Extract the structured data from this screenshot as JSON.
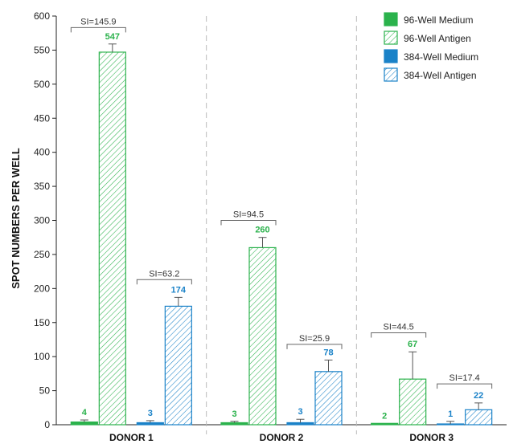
{
  "chart_data": {
    "type": "bar",
    "ylabel": "SPOT NUMBERS PER WELL",
    "ylim": [
      0,
      600
    ],
    "yticks": [
      0,
      50,
      100,
      150,
      200,
      250,
      300,
      350,
      400,
      450,
      500,
      550,
      600
    ],
    "categories": [
      "DONOR 1",
      "DONOR 2",
      "DONOR 3"
    ],
    "grid": false,
    "legend_position": "top-right",
    "series": [
      {
        "name": "96-Well Medium",
        "values": [
          4,
          3,
          2
        ],
        "errors": [
          3,
          2,
          0
        ],
        "color": "#2bb24c",
        "pattern": "solid"
      },
      {
        "name": "96-Well Antigen",
        "values": [
          547,
          260,
          67
        ],
        "errors": [
          12,
          15,
          40
        ],
        "color": "#2bb24c",
        "pattern": "hatched"
      },
      {
        "name": "384-Well Medium",
        "values": [
          3,
          3,
          1
        ],
        "errors": [
          3,
          5,
          4
        ],
        "color": "#1a82c8",
        "pattern": "solid"
      },
      {
        "name": "384-Well Antigen",
        "values": [
          174,
          78,
          22
        ],
        "errors": [
          13,
          17,
          10
        ],
        "color": "#1a82c8",
        "pattern": "hatched"
      }
    ],
    "annotations": [
      {
        "category": "DONOR 1",
        "group": "96-Well",
        "text": "SI=145.9",
        "level": 583
      },
      {
        "category": "DONOR 1",
        "group": "384-Well",
        "text": "SI=63.2",
        "level": 213
      },
      {
        "category": "DONOR 2",
        "group": "96-Well",
        "text": "SI=94.5",
        "level": 300
      },
      {
        "category": "DONOR 2",
        "group": "384-Well",
        "text": "SI=25.9",
        "level": 118
      },
      {
        "category": "DONOR 3",
        "group": "96-Well",
        "text": "SI=44.5",
        "level": 135
      },
      {
        "category": "DONOR 3",
        "group": "384-Well",
        "text": "SI=17.4",
        "level": 60
      }
    ]
  }
}
